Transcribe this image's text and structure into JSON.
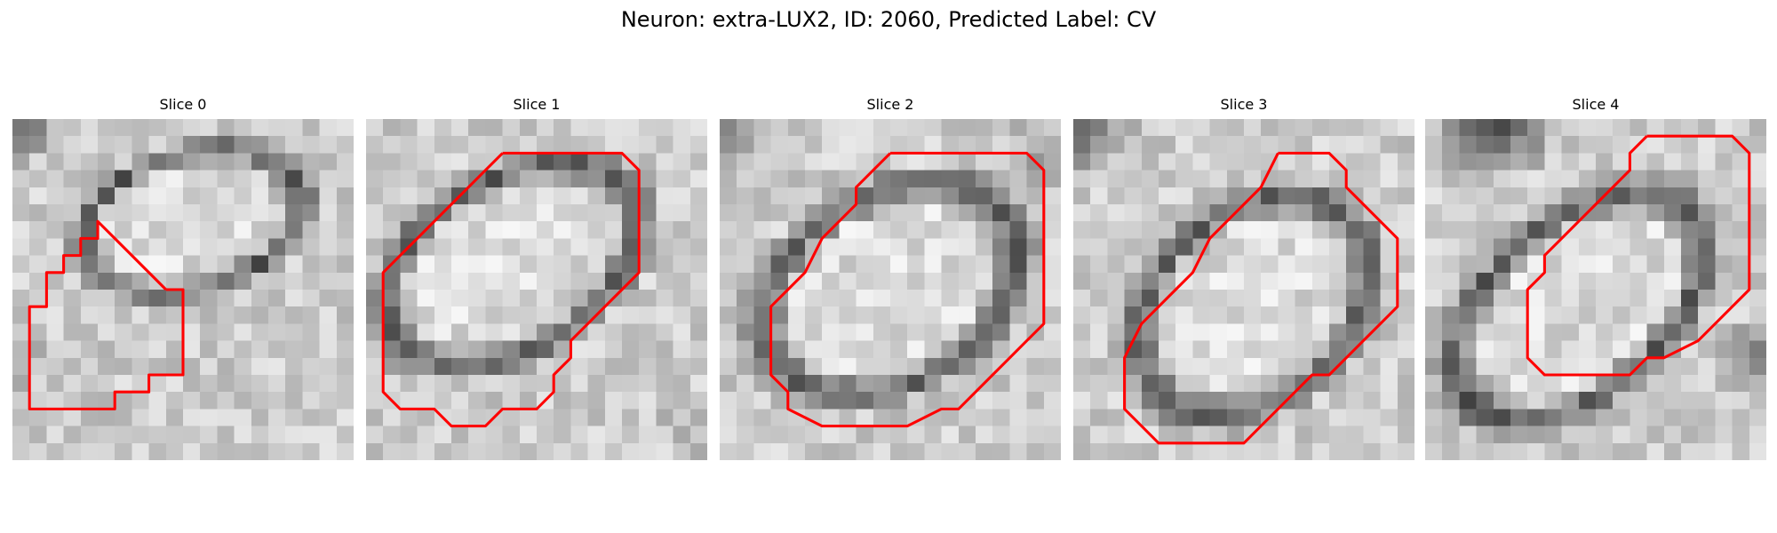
{
  "figure": {
    "title": "Neuron: extra-LUX2, ID: 2060, Predicted Label: CV"
  },
  "panels": [
    {
      "title": "Slice 0",
      "contour": [
        [
          9,
          10
        ],
        [
          10,
          10
        ],
        [
          10,
          15
        ],
        [
          8,
          15
        ],
        [
          8,
          16
        ],
        [
          6,
          16
        ],
        [
          6,
          17
        ],
        [
          1,
          17
        ],
        [
          1,
          11
        ],
        [
          2,
          11
        ],
        [
          2,
          9
        ],
        [
          3,
          9
        ],
        [
          3,
          8
        ],
        [
          4,
          8
        ],
        [
          4,
          7
        ],
        [
          5,
          7
        ],
        [
          5,
          6
        ]
      ]
    },
    {
      "title": "Slice 1",
      "contour": [
        [
          8,
          2
        ],
        [
          15,
          2
        ],
        [
          16,
          3
        ],
        [
          16,
          9
        ],
        [
          15,
          10
        ],
        [
          14,
          11
        ],
        [
          13,
          12
        ],
        [
          12,
          13
        ],
        [
          12,
          14
        ],
        [
          11,
          15
        ],
        [
          11,
          16
        ],
        [
          10,
          17
        ],
        [
          8,
          17
        ],
        [
          7,
          18
        ],
        [
          5,
          18
        ],
        [
          4,
          17
        ],
        [
          2,
          17
        ],
        [
          1,
          16
        ],
        [
          1,
          9
        ],
        [
          2,
          8
        ],
        [
          3,
          7
        ],
        [
          4,
          6
        ],
        [
          5,
          5
        ],
        [
          6,
          4
        ],
        [
          7,
          3
        ]
      ]
    },
    {
      "title": "Slice 2",
      "contour": [
        [
          10,
          2
        ],
        [
          18,
          2
        ],
        [
          19,
          3
        ],
        [
          19,
          12
        ],
        [
          18,
          13
        ],
        [
          17,
          14
        ],
        [
          16,
          15
        ],
        [
          14,
          17
        ],
        [
          13,
          17
        ],
        [
          11,
          18
        ],
        [
          6,
          18
        ],
        [
          4,
          17
        ],
        [
          4,
          16
        ],
        [
          3,
          15
        ],
        [
          3,
          11
        ],
        [
          4,
          10
        ],
        [
          5,
          9
        ],
        [
          6,
          7
        ],
        [
          7,
          6
        ],
        [
          8,
          5
        ],
        [
          8,
          4
        ],
        [
          9,
          3
        ]
      ]
    },
    {
      "title": "Slice 3",
      "contour": [
        [
          12,
          2
        ],
        [
          15,
          2
        ],
        [
          16,
          3
        ],
        [
          16,
          4
        ],
        [
          17,
          5
        ],
        [
          18,
          6
        ],
        [
          19,
          7
        ],
        [
          19,
          11
        ],
        [
          18,
          12
        ],
        [
          17,
          13
        ],
        [
          16,
          14
        ],
        [
          15,
          15
        ],
        [
          14,
          15
        ],
        [
          13,
          16
        ],
        [
          12,
          17
        ],
        [
          11,
          18
        ],
        [
          10,
          19
        ],
        [
          6,
          19
        ],
        [
          5,
          19
        ],
        [
          4,
          18
        ],
        [
          3,
          17
        ],
        [
          3,
          14
        ],
        [
          4,
          12
        ],
        [
          5,
          11
        ],
        [
          6,
          10
        ],
        [
          7,
          9
        ],
        [
          8,
          7
        ],
        [
          9,
          6
        ],
        [
          10,
          5
        ],
        [
          11,
          4
        ]
      ]
    },
    {
      "title": "Slice 4",
      "contour": [
        [
          13,
          1
        ],
        [
          18,
          1
        ],
        [
          19,
          2
        ],
        [
          19,
          10
        ],
        [
          17,
          12
        ],
        [
          16,
          13
        ],
        [
          14,
          14
        ],
        [
          13,
          14
        ],
        [
          12,
          15
        ],
        [
          7,
          15
        ],
        [
          6,
          14
        ],
        [
          6,
          10
        ],
        [
          7,
          9
        ],
        [
          7,
          8
        ],
        [
          8,
          7
        ],
        [
          9,
          6
        ],
        [
          10,
          5
        ],
        [
          11,
          4
        ],
        [
          12,
          3
        ],
        [
          12,
          2
        ]
      ]
    }
  ]
}
